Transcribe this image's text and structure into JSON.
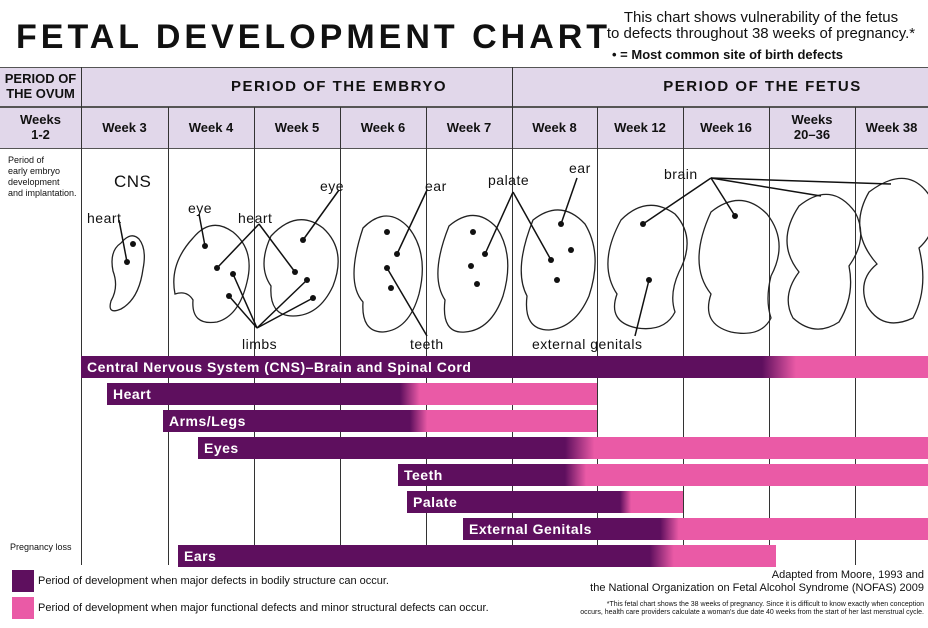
{
  "header": {
    "title": "FETAL DEVELOPMENT CHART",
    "subtitle_line1": "This chart shows vulnerability of the fetus",
    "subtitle_line2": "to defects throughout 38 weeks of pregnancy.*",
    "note": "• = Most common site of birth defects"
  },
  "periods": {
    "ovum_line1": "PERIOD OF",
    "ovum_line2": "THE OVUM",
    "embryo": "PERIOD OF THE EMBRYO",
    "fetus": "PERIOD OF THE FETUS"
  },
  "weeks": [
    {
      "line1": "Weeks",
      "line2": "1-2"
    },
    {
      "line1": "Week 3",
      "line2": ""
    },
    {
      "line1": "Week 4",
      "line2": ""
    },
    {
      "line1": "Week 5",
      "line2": ""
    },
    {
      "line1": "Week 6",
      "line2": ""
    },
    {
      "line1": "Week 7",
      "line2": ""
    },
    {
      "line1": "Week 8",
      "line2": ""
    },
    {
      "line1": "Week 12",
      "line2": ""
    },
    {
      "line1": "Week 16",
      "line2": ""
    },
    {
      "line1": "Weeks",
      "line2": "20–36"
    },
    {
      "line1": "Week 38",
      "line2": ""
    }
  ],
  "side_notes": {
    "ovum_line1": "Period of",
    "ovum_line2": "early embryo",
    "ovum_line3": "development",
    "ovum_line4": "and implantation.",
    "loss": "Pregnancy loss"
  },
  "organ_labels": {
    "cns": "CNS",
    "heart": "heart",
    "eye": "eye",
    "heart2": "heart",
    "eye2": "eye",
    "ear": "ear",
    "palate": "palate",
    "ear2": "ear",
    "brain": "brain",
    "limbs": "limbs",
    "teeth": "teeth",
    "external_genitals": "external genitals"
  },
  "bars": [
    {
      "label": "Central Nervous System (CNS)–Brain and Spinal Cord"
    },
    {
      "label": "Heart"
    },
    {
      "label": "Arms/Legs"
    },
    {
      "label": "Eyes"
    },
    {
      "label": "Teeth"
    },
    {
      "label": "Palate"
    },
    {
      "label": "External Genitals"
    },
    {
      "label": "Ears"
    }
  ],
  "colors": {
    "major": "#5e0f5e",
    "minor": "#ea5aa6",
    "header_bg": "#e1d7ea"
  },
  "legend": {
    "major": "Period of development when major defects in bodily structure can occur.",
    "minor": "Period of development when major functional defects and minor structural defects can occur."
  },
  "source": {
    "line1": "Adapted from Moore, 1993 and",
    "line2": "the National Organization on Fetal Alcohol Syndrome (NOFAS) 2009"
  },
  "footnote": {
    "line1": "*This fetal chart shows the 38 weeks of pregnancy. Since it is difficult to know exactly when conception",
    "line2": "occurs, health care providers calculate a woman's due date 40 weeks from the start of her last menstrual cycle."
  }
}
